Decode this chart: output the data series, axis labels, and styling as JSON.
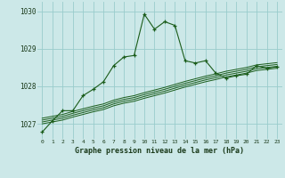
{
  "xlabel": "Graphe pression niveau de la mer (hPa)",
  "bg_color": "#cce8e8",
  "grid_color": "#99cccc",
  "line_color": "#1a5c1a",
  "ylim": [
    1026.6,
    1030.25
  ],
  "xlim": [
    -0.5,
    23.5
  ],
  "yticks": [
    1027,
    1028,
    1029,
    1030
  ],
  "xticks": [
    0,
    1,
    2,
    3,
    4,
    5,
    6,
    7,
    8,
    9,
    10,
    11,
    12,
    13,
    14,
    15,
    16,
    17,
    18,
    19,
    20,
    21,
    22,
    23
  ],
  "main_series": [
    1026.78,
    1027.08,
    1027.35,
    1027.35,
    1027.75,
    1027.92,
    1028.12,
    1028.55,
    1028.78,
    1028.82,
    1029.92,
    1029.52,
    1029.72,
    1029.62,
    1028.68,
    1028.62,
    1028.68,
    1028.35,
    1028.22,
    1028.28,
    1028.32,
    1028.55,
    1028.48,
    1028.52
  ],
  "bundle_series": [
    [
      1027.0,
      1027.05,
      1027.1,
      1027.18,
      1027.25,
      1027.32,
      1027.38,
      1027.48,
      1027.55,
      1027.6,
      1027.68,
      1027.75,
      1027.82,
      1027.9,
      1027.98,
      1028.05,
      1028.12,
      1028.18,
      1028.25,
      1028.3,
      1028.35,
      1028.42,
      1028.45,
      1028.48
    ],
    [
      1027.05,
      1027.1,
      1027.15,
      1027.23,
      1027.3,
      1027.37,
      1027.43,
      1027.53,
      1027.6,
      1027.65,
      1027.73,
      1027.8,
      1027.87,
      1027.95,
      1028.03,
      1028.1,
      1028.17,
      1028.23,
      1028.3,
      1028.35,
      1028.4,
      1028.47,
      1028.5,
      1028.53
    ],
    [
      1027.1,
      1027.15,
      1027.2,
      1027.28,
      1027.35,
      1027.42,
      1027.48,
      1027.58,
      1027.65,
      1027.7,
      1027.78,
      1027.85,
      1027.92,
      1028.0,
      1028.08,
      1028.15,
      1028.22,
      1028.28,
      1028.35,
      1028.4,
      1028.45,
      1028.52,
      1028.55,
      1028.58
    ],
    [
      1027.15,
      1027.2,
      1027.25,
      1027.33,
      1027.4,
      1027.47,
      1027.53,
      1027.63,
      1027.7,
      1027.75,
      1027.83,
      1027.9,
      1027.97,
      1028.05,
      1028.13,
      1028.2,
      1028.27,
      1028.33,
      1028.4,
      1028.45,
      1028.5,
      1028.57,
      1028.6,
      1028.63
    ]
  ]
}
